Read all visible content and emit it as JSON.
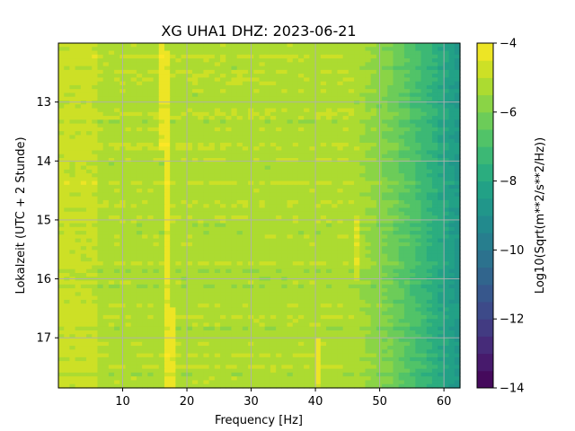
{
  "chart_data": {
    "type": "heatmap",
    "title": "XG UHA1  DHZ: 2023-06-21",
    "xlabel": "Frequency [Hz]",
    "ylabel": "Lokalzeit (UTC + 2 Stunde)",
    "colorbar_label": "Log10(Sqrt(m**2/s**2/Hz))",
    "xlim": [
      0,
      62.5
    ],
    "ylim": [
      17.85,
      12.0
    ],
    "x_ticks": [
      10,
      20,
      30,
      40,
      50,
      60
    ],
    "y_ticks": [
      13,
      14,
      15,
      16,
      17
    ],
    "colorbar_range": [
      -14,
      -4
    ],
    "colorbar_ticks": [
      -4,
      -6,
      -8,
      -10,
      -12,
      -14
    ],
    "colormap": "viridis",
    "grid": true,
    "y_inverted": true,
    "features": {
      "broadband_level": -5.0,
      "high_freq_rolloff_start_hz": 45,
      "high_freq_level_at_62hz": -8.5,
      "line_near_hz": 16.3,
      "line_near_hz_2": 46.5,
      "spike_near_hz": 40.3
    }
  }
}
